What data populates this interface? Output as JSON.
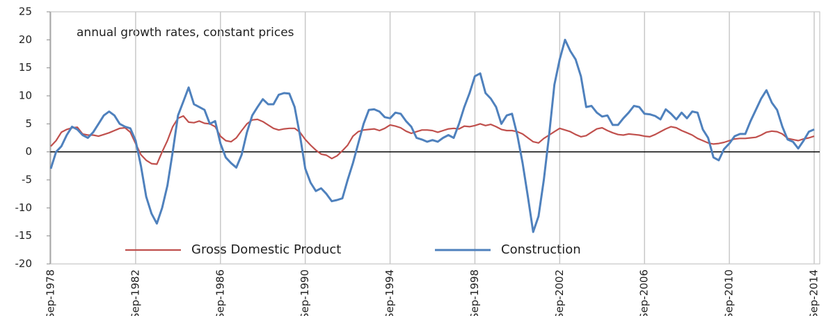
{
  "chart_data": {
    "type": "line",
    "annotation": "annual growth rates, constant prices",
    "categories": [
      "Sep-1978",
      null,
      null,
      null,
      null,
      null,
      null,
      null,
      null,
      null,
      null,
      null,
      null,
      null,
      null,
      null,
      "Sep-1982",
      null,
      null,
      null,
      null,
      null,
      null,
      null,
      null,
      null,
      null,
      null,
      null,
      null,
      null,
      null,
      "Sep-1986",
      null,
      null,
      null,
      null,
      null,
      null,
      null,
      null,
      null,
      null,
      null,
      null,
      null,
      null,
      null,
      "Sep-1990",
      null,
      null,
      null,
      null,
      null,
      null,
      null,
      null,
      null,
      null,
      null,
      null,
      null,
      null,
      null,
      "Sep-1994",
      null,
      null,
      null,
      null,
      null,
      null,
      null,
      null,
      null,
      null,
      null,
      null,
      null,
      null,
      null,
      "Sep-1998",
      null,
      null,
      null,
      null,
      null,
      null,
      null,
      null,
      null,
      null,
      null,
      null,
      null,
      null,
      null,
      "Sep-2002",
      null,
      null,
      null,
      null,
      null,
      null,
      null,
      null,
      null,
      null,
      null,
      null,
      null,
      null,
      null,
      "Sep-2006",
      null,
      null,
      null,
      null,
      null,
      null,
      null,
      null,
      null,
      null,
      null,
      null,
      null,
      null,
      null,
      "Sep-2010",
      null,
      null,
      null,
      null,
      null,
      null,
      null,
      null,
      null,
      null,
      null,
      null,
      null,
      null,
      null,
      "Sep-2014"
    ],
    "series": [
      {
        "name": "Gross Domestic Product",
        "color": "#c0504d",
        "values": [
          1,
          2,
          3.5,
          4,
          4.3,
          4.4,
          3.2,
          3,
          3,
          2.8,
          3.1,
          3.4,
          3.8,
          4.2,
          4.3,
          3.5,
          1.5,
          -0.5,
          -1.5,
          -2.1,
          -2.2,
          0,
          2,
          4.5,
          6,
          6.4,
          5.3,
          5.2,
          5.5,
          5.1,
          5,
          4.5,
          2.8,
          2,
          1.8,
          2.5,
          3.8,
          5,
          5.7,
          5.8,
          5.4,
          4.8,
          4.2,
          3.9,
          4.1,
          4.2,
          4.2,
          3.5,
          2.2,
          1.2,
          0.3,
          -0.4,
          -0.6,
          -1.2,
          -0.7,
          0.2,
          1.2,
          2.8,
          3.6,
          3.9,
          4,
          4.1,
          3.8,
          4.2,
          4.8,
          4.6,
          4.3,
          3.7,
          3.3,
          3.6,
          3.9,
          3.9,
          3.8,
          3.5,
          3.8,
          4.1,
          4.2,
          4.1,
          4.6,
          4.5,
          4.7,
          5,
          4.7,
          4.9,
          4.5,
          4,
          3.8,
          3.8,
          3.6,
          3.2,
          2.5,
          1.8,
          1.6,
          2.4,
          3,
          3.6,
          4.2,
          3.9,
          3.6,
          3.1,
          2.7,
          2.9,
          3.5,
          4.1,
          4.3,
          3.8,
          3.4,
          3.1,
          3,
          3.2,
          3.1,
          3,
          2.8,
          2.7,
          3.1,
          3.6,
          4.1,
          4.5,
          4.3,
          3.8,
          3.4,
          3,
          2.4,
          2,
          1.6,
          1.4,
          1.5,
          1.7,
          2,
          2.3,
          2.4,
          2.4,
          2.5,
          2.6,
          3,
          3.5,
          3.7,
          3.6,
          3.2,
          2.4,
          2.2,
          2,
          2.3,
          2.5,
          2.8
        ]
      },
      {
        "name": "Construction",
        "color": "#4f81bd",
        "values": [
          -3,
          0,
          1,
          3,
          4.5,
          4,
          3,
          2.5,
          3.5,
          5,
          6.5,
          7.2,
          6.5,
          5,
          4.5,
          4.2,
          2,
          -2.5,
          -8,
          -11,
          -12.8,
          -10,
          -6,
          0,
          6.5,
          9,
          11.5,
          8.5,
          8,
          7.5,
          5,
          5.5,
          1.5,
          -1,
          -2,
          -2.8,
          -0.5,
          3.5,
          6.5,
          8,
          9.4,
          8.5,
          8.5,
          10.2,
          10.5,
          10.4,
          8,
          3,
          -3,
          -5.5,
          -7,
          -6.5,
          -7.5,
          -8.8,
          -8.6,
          -8.3,
          -5,
          -2,
          1.5,
          5,
          7.5,
          7.6,
          7.2,
          6.2,
          6,
          7,
          6.8,
          5.5,
          4.5,
          2.5,
          2.2,
          1.8,
          2.1,
          1.8,
          2.5,
          3,
          2.5,
          5,
          8,
          10.5,
          13.5,
          14,
          10.5,
          9.5,
          8,
          5,
          6.5,
          6.8,
          3,
          -2,
          -8,
          -14.3,
          -11.5,
          -5,
          3,
          12,
          16.5,
          20,
          18,
          16.5,
          13.5,
          8,
          8.2,
          7,
          6.3,
          6.5,
          4.8,
          4.8,
          6,
          7,
          8.2,
          8,
          6.8,
          6.7,
          6.4,
          5.8,
          7.6,
          6.8,
          5.8,
          7,
          6,
          7.2,
          7,
          4,
          2.5,
          -1,
          -1.5,
          0.5,
          1.5,
          2.8,
          3.2,
          3.2,
          5.5,
          7.5,
          9.5,
          11,
          8.8,
          7.5,
          4.5,
          2.2,
          1.8,
          0.6,
          2,
          3.6,
          4
        ]
      }
    ],
    "ylim": [
      -20,
      25
    ],
    "yticks": [
      -20,
      -15,
      -10,
      -5,
      0,
      5,
      10,
      15,
      20,
      25
    ],
    "grid": "x",
    "legend": "bottom"
  }
}
